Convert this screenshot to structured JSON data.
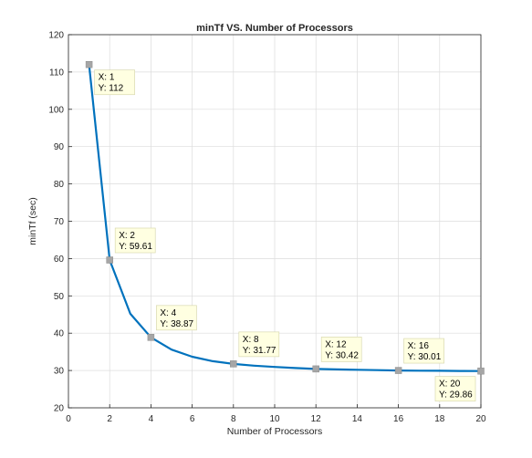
{
  "chart_data": {
    "type": "line",
    "title": "minTf VS. Number of Processors",
    "xlabel": "Number of Processors",
    "ylabel": "minTf (sec)",
    "xlim": [
      0,
      20
    ],
    "ylim": [
      20,
      120
    ],
    "xticks": [
      "0",
      "2",
      "4",
      "6",
      "8",
      "10",
      "12",
      "14",
      "16",
      "18",
      "20"
    ],
    "yticks": [
      "20",
      "30",
      "40",
      "50",
      "60",
      "70",
      "80",
      "90",
      "100",
      "110",
      "120"
    ],
    "grid": true,
    "line_color": "#0072BD",
    "marker_color": "#A6A6A6",
    "series": [
      {
        "x": [
          1,
          2,
          3,
          4,
          5,
          6,
          7,
          8,
          9,
          10,
          11,
          12,
          13,
          14,
          15,
          16,
          17,
          18,
          19,
          20
        ],
        "y": [
          112,
          59.61,
          45.2,
          38.87,
          35.6,
          33.7,
          32.5,
          31.77,
          31.3,
          30.95,
          30.65,
          30.42,
          30.3,
          30.2,
          30.1,
          30.01,
          29.95,
          29.92,
          29.88,
          29.86
        ]
      }
    ],
    "datatips": [
      {
        "x": 1,
        "y": 112,
        "xtext": "X: 1",
        "ytext": "Y: 112"
      },
      {
        "x": 2,
        "y": 59.61,
        "xtext": "X: 2",
        "ytext": "Y: 59.61"
      },
      {
        "x": 4,
        "y": 38.87,
        "xtext": "X: 4",
        "ytext": "Y: 38.87"
      },
      {
        "x": 8,
        "y": 31.77,
        "xtext": "X: 8",
        "ytext": "Y: 31.77"
      },
      {
        "x": 12,
        "y": 30.42,
        "xtext": "X: 12",
        "ytext": "Y: 30.42"
      },
      {
        "x": 16,
        "y": 30.01,
        "xtext": "X: 16",
        "ytext": "Y: 30.01"
      },
      {
        "x": 20,
        "y": 29.86,
        "xtext": "X: 20",
        "ytext": "Y: 29.86"
      }
    ]
  }
}
